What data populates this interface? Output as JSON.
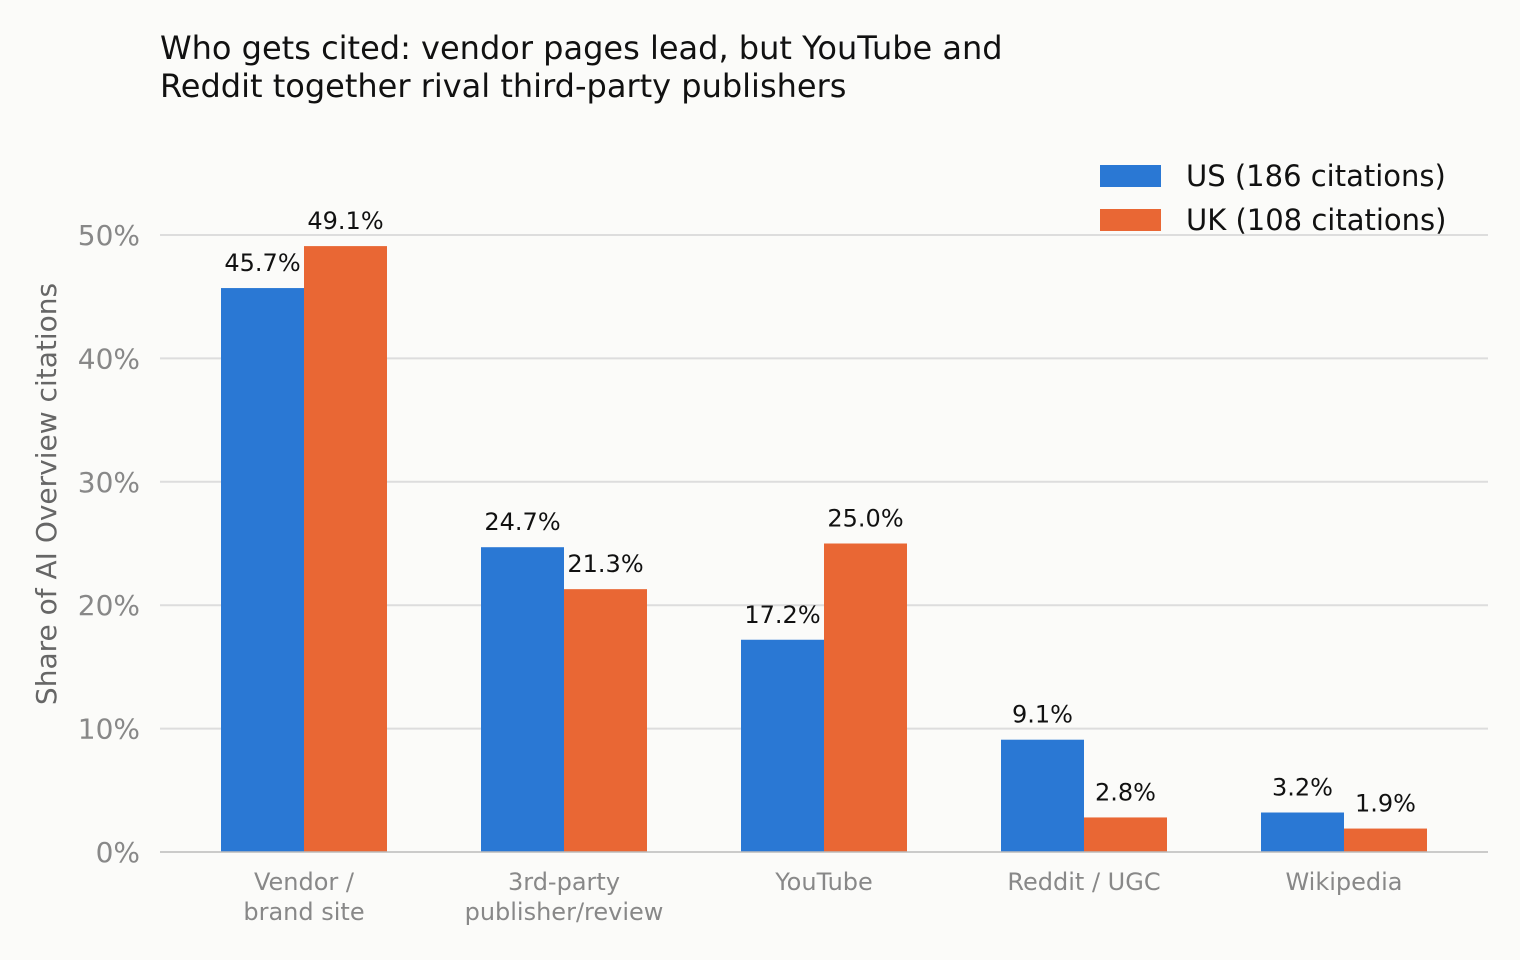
{
  "chart_data": {
    "type": "bar",
    "title_lines": [
      "Who gets cited: vendor pages lead, but YouTube and",
      "Reddit together rival third-party publishers"
    ],
    "ylabel": "Share of AI Overview citations",
    "xlabel": "",
    "categories": [
      [
        "Vendor /",
        "brand site"
      ],
      [
        "3rd-party",
        "publisher/review"
      ],
      [
        "YouTube"
      ],
      [
        "Reddit / UGC"
      ],
      [
        "Wikipedia"
      ]
    ],
    "series": [
      {
        "name": "US (186 citations)",
        "color": "#2a78d4",
        "values": [
          45.7,
          24.7,
          17.2,
          9.1,
          3.2
        ]
      },
      {
        "name": "UK (108 citations)",
        "color": "#e96734",
        "values": [
          49.1,
          21.3,
          25.0,
          2.8,
          1.9
        ]
      }
    ],
    "ylim": [
      0,
      50
    ],
    "yticks": [
      0,
      10,
      20,
      30,
      40,
      50
    ],
    "ytick_suffix": "%",
    "value_suffix": "%",
    "grid": true,
    "legend_position": "top-right"
  }
}
